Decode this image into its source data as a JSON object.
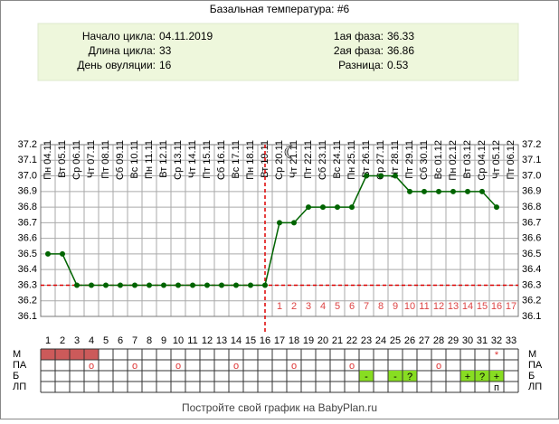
{
  "title": "Базальная температура: #6",
  "info": {
    "left": [
      {
        "label": "Начало цикла:",
        "value": "04.11.2019"
      },
      {
        "label": "Длина цикла:",
        "value": 33
      },
      {
        "label": "День овуляции:",
        "value": 16
      }
    ],
    "right": [
      {
        "label": "1ая фаза:",
        "value": 36.33
      },
      {
        "label": "2ая фаза:",
        "value": 36.86
      },
      {
        "label": "Разница:",
        "value": 0.53
      }
    ]
  },
  "chart_data": {
    "type": "line",
    "categories": [
      "Пн 04.11",
      "Вт 05.11",
      "Ср 06.11",
      "Чт 07.11",
      "Пт 08.11",
      "Сб 09.11",
      "Вс 10.11",
      "Пн 11.11",
      "Вт 12.11",
      "Ср 13.11",
      "Чт 14.11",
      "Пт 15.11",
      "Сб 16.11",
      "Вс 17.11",
      "Пн 18.11",
      "Вт 19.11",
      "Ср 20.11",
      "Чт 21.11",
      "Пт 22.11",
      "Сб 23.11",
      "Вс 24.11",
      "Пн 25.11",
      "Вт 26.11",
      "Ср 27.11",
      "Чт 28.11",
      "Пт 29.11",
      "Сб 30.11",
      "Вс 01.12",
      "Пн 02.12",
      "Вт 03.12",
      "Ср 04.12",
      "Чт 05.12",
      "Пт 06.12"
    ],
    "day_numbers": [
      1,
      2,
      3,
      4,
      5,
      6,
      7,
      8,
      9,
      10,
      11,
      12,
      13,
      14,
      15,
      16,
      17,
      18,
      19,
      20,
      21,
      22,
      23,
      24,
      25,
      26,
      27,
      28,
      29,
      30,
      31,
      32,
      33
    ],
    "luteal_days": [
      1,
      2,
      3,
      4,
      5,
      6,
      7,
      8,
      9,
      10,
      11,
      12,
      13,
      14,
      15,
      16,
      17
    ],
    "series": [
      {
        "color": "#006400",
        "values": [
          36.5,
          36.5,
          36.3,
          36.3,
          36.3,
          36.3,
          36.3,
          36.3,
          36.3,
          36.3,
          36.3,
          36.3,
          36.3,
          36.3,
          36.3,
          36.3,
          36.7,
          36.7,
          36.8,
          36.8,
          36.8,
          36.8,
          37.0,
          37.0,
          37.0,
          36.9,
          36.9,
          36.9,
          36.9,
          36.9,
          36.9,
          36.8,
          null
        ]
      }
    ],
    "cover_line": 36.3,
    "ylim": [
      36.1,
      37.2
    ],
    "yticks": [
      36.1,
      36.2,
      36.3,
      36.4,
      36.5,
      36.6,
      36.7,
      36.8,
      36.9,
      {
        "value": 37,
        "label": "37.0"
      },
      37.1,
      37.2
    ],
    "grid": true,
    "rows": [
      {
        "label": "М",
        "filled_days": [
          1,
          2,
          3,
          4
        ],
        "fill": "#cc5a5a",
        "marks": [
          {
            "day": 32,
            "text": "*"
          }
        ]
      },
      {
        "label": "ПА",
        "marks": [
          {
            "day": 4,
            "text": "о"
          },
          {
            "day": 7,
            "text": "о"
          },
          {
            "day": 10,
            "text": "о"
          },
          {
            "day": 14,
            "text": "о"
          },
          {
            "day": 18,
            "text": "о"
          },
          {
            "day": 22,
            "text": "о"
          },
          {
            "day": 28,
            "text": "о"
          }
        ]
      },
      {
        "label": "Б",
        "filled_days": [
          23,
          25,
          26,
          30,
          31,
          32
        ],
        "fill": "#88dd22",
        "marks": [
          {
            "day": 23,
            "text": "-"
          },
          {
            "day": 25,
            "text": "-"
          },
          {
            "day": 26,
            "text": "?"
          },
          {
            "day": 30,
            "text": "+"
          },
          {
            "day": 31,
            "text": "?"
          },
          {
            "day": 32,
            "text": "+"
          }
        ]
      },
      {
        "label": "ЛП",
        "marks": [
          {
            "day": 32,
            "text": "п"
          }
        ]
      }
    ]
  },
  "footer": "Постройте свой график на BabyPlan.ru"
}
